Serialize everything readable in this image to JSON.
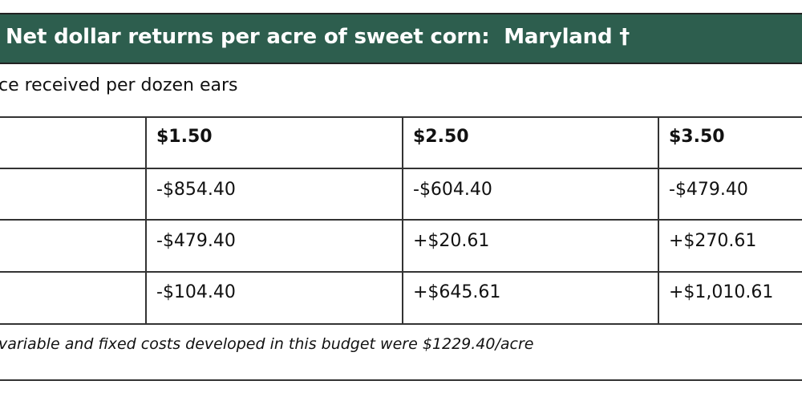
{
  "title": "Net dollar returns per acre of sweet corn:  Maryland †",
  "subtitle": "ce received per dozen ears",
  "table": {
    "headers": [
      "",
      "$1.50",
      "$2.50",
      "$3.50"
    ],
    "rows": [
      [
        "",
        "-$854.40",
        "-$604.40",
        "-$479.40"
      ],
      [
        "",
        "-$479.40",
        "+$20.61",
        "+$270.61"
      ],
      [
        "",
        "-$104.40",
        "+$645.61",
        "+$1,010.61"
      ]
    ]
  },
  "footnote": "variable and fixed costs developed in this budget were $1229.40/acre",
  "colors": {
    "header_band": "#2d5e4e"
  }
}
